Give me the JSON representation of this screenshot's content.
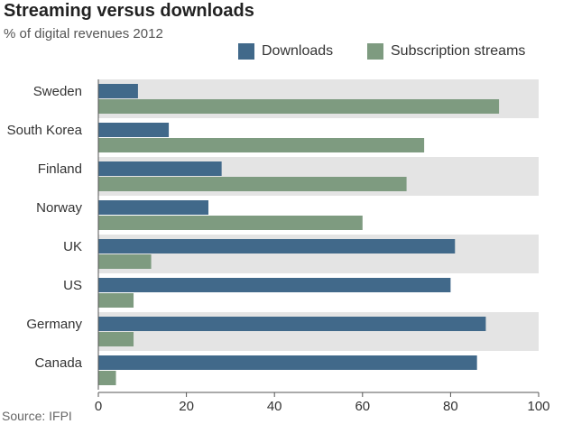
{
  "chart_data": {
    "type": "bar",
    "orientation": "horizontal",
    "title": "Streaming versus downloads",
    "subtitle": "% of digital revenues 2012",
    "source": "Source: IFPI",
    "categories": [
      "Sweden",
      "South Korea",
      "Finland",
      "Norway",
      "UK",
      "US",
      "Germany",
      "Canada"
    ],
    "series": [
      {
        "name": "Downloads",
        "color": "#41698a",
        "values": [
          9,
          16,
          28,
          25,
          81,
          80,
          88,
          86
        ]
      },
      {
        "name": "Subscription streams",
        "color": "#7e9b80",
        "values": [
          91,
          74,
          70,
          60,
          12,
          8,
          8,
          4
        ]
      }
    ],
    "xlim": [
      0,
      100
    ],
    "xticks": [
      0,
      20,
      40,
      60,
      80,
      100
    ],
    "legend": "top-right",
    "band_colors": [
      "#e4e4e4",
      "#ffffff"
    ]
  }
}
